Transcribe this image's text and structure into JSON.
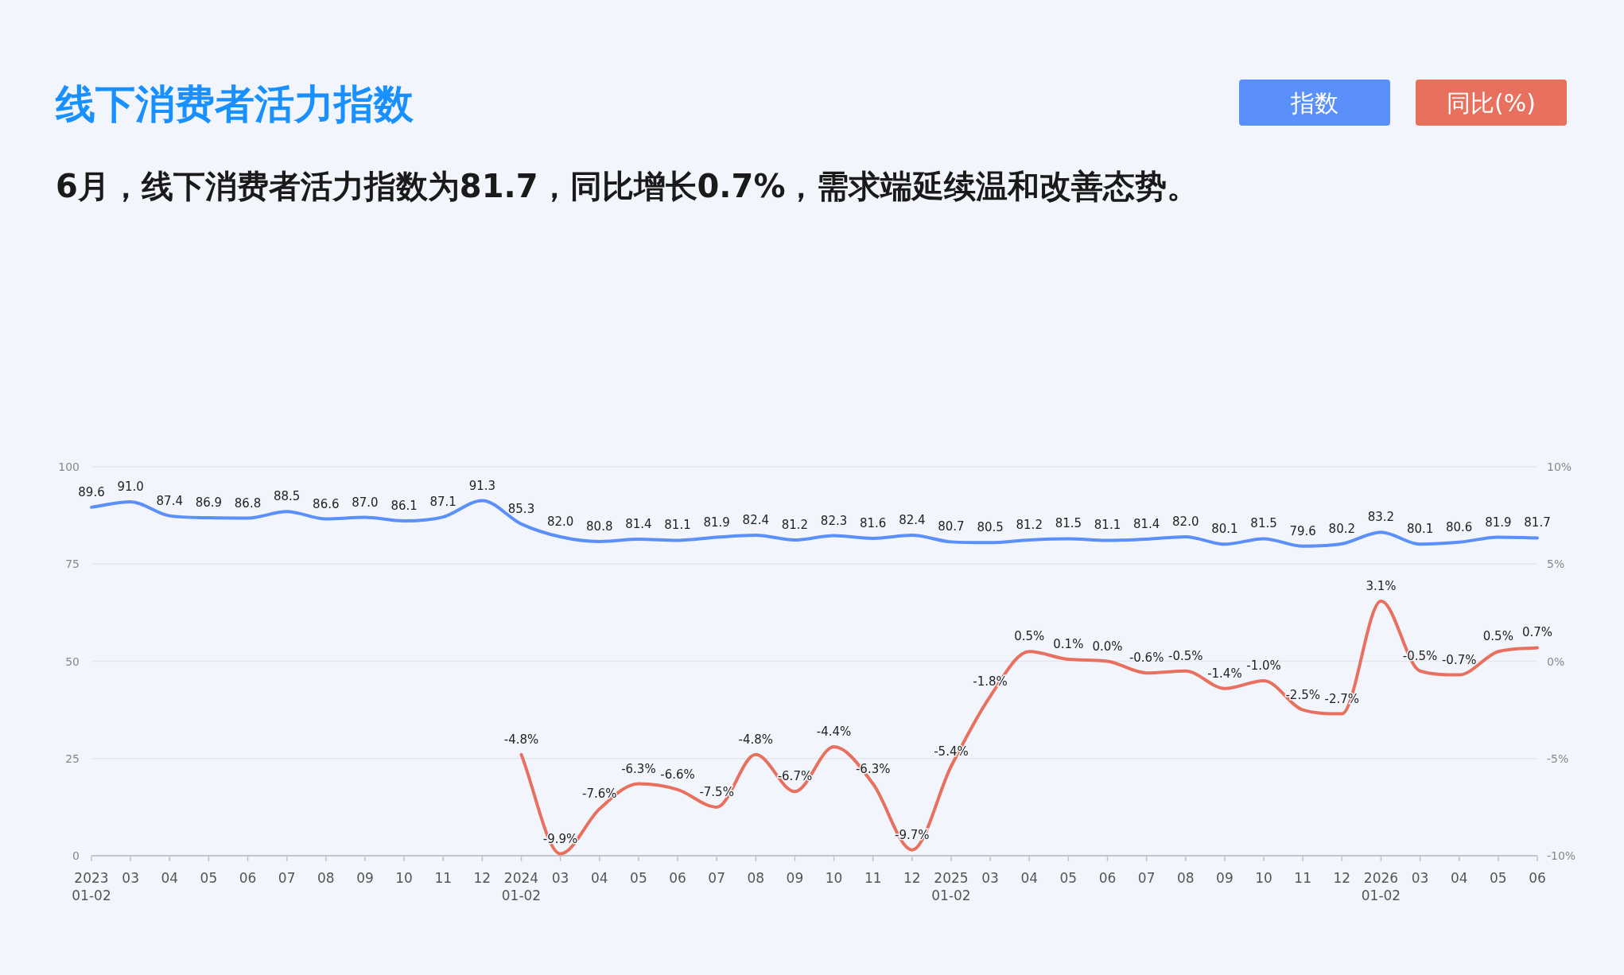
{
  "chart_data": {
    "type": "line",
    "title": "线下消费者活力指数",
    "subtitle": "6月，线下消费者活力指数为81.7，同比增长0.7%，需求端延续温和改善态势。",
    "categories": [
      "2023\n01-02",
      "03",
      "04",
      "05",
      "06",
      "07",
      "08",
      "09",
      "10",
      "11",
      "12",
      "2024\n01-02",
      "03",
      "04",
      "05",
      "06",
      "07",
      "08",
      "09",
      "10",
      "11",
      "12",
      "2025\n01-02",
      "03",
      "04",
      "05",
      "06",
      "07",
      "08",
      "09",
      "10",
      "11",
      "12",
      "2026\n01-02",
      "03",
      "04",
      "05",
      "06"
    ],
    "series": [
      {
        "name": "指数",
        "color": "#5b8ff9",
        "values": [
          89.6,
          91.0,
          87.4,
          86.9,
          86.8,
          88.5,
          86.6,
          87.0,
          86.1,
          87.1,
          91.3,
          85.3,
          82.0,
          80.8,
          81.4,
          81.1,
          81.9,
          82.4,
          81.2,
          82.3,
          81.6,
          82.4,
          80.7,
          80.5,
          81.2,
          81.5,
          81.1,
          81.4,
          82.0,
          80.1,
          81.5,
          79.6,
          80.2,
          83.2,
          80.1,
          80.6,
          81.9,
          81.7
        ],
        "value_labels": [
          "89.6",
          "91.0",
          "87.4",
          "86.9",
          "86.8",
          "88.5",
          "86.6",
          "87.0",
          "86.1",
          "87.1",
          "91.3",
          "85.3",
          "82.0",
          "80.8",
          "81.4",
          "81.1",
          "81.9",
          "82.4",
          "81.2",
          "82.3",
          "81.6",
          "82.4",
          "80.7",
          "80.5",
          "81.2",
          "81.5",
          "81.1",
          "81.4",
          "82.0",
          "80.1",
          "81.5",
          "79.6",
          "80.2",
          "83.2",
          "80.1",
          "80.6",
          "81.9",
          "81.7"
        ]
      },
      {
        "name": "同比(%)",
        "color": "#e8705e",
        "axis": "y2",
        "values": [
          null,
          null,
          null,
          null,
          null,
          null,
          null,
          null,
          null,
          null,
          null,
          -4.8,
          -9.9,
          -7.6,
          -6.3,
          -6.6,
          -7.5,
          -4.8,
          -6.7,
          -4.4,
          -6.3,
          -9.7,
          -5.4,
          -1.8,
          0.5,
          0.1,
          0.0,
          -0.6,
          -0.5,
          -1.4,
          -1.0,
          -2.5,
          -2.7,
          3.1,
          -0.5,
          -0.7,
          0.5,
          0.7
        ],
        "value_labels": [
          null,
          null,
          null,
          null,
          null,
          null,
          null,
          null,
          null,
          null,
          null,
          "-4.8%",
          "-9.9%",
          "-7.6%",
          "-6.3%",
          "-6.6%",
          "-7.5%",
          "-4.8%",
          "-6.7%",
          "-4.4%",
          "-6.3%",
          "-9.7%",
          "-5.4%",
          "-1.8%",
          "0.5%",
          "0.1%",
          "0.0%",
          "-0.6%",
          "-0.5%",
          "-1.4%",
          "-1.0%",
          "-2.5%",
          "-2.7%",
          "3.1%",
          "-0.5%",
          "-0.7%",
          "0.5%",
          "0.7%"
        ]
      }
    ],
    "ylim": [
      0,
      100
    ],
    "yticks": [
      0,
      25,
      50,
      75,
      100
    ],
    "y2lim": [
      -10,
      10
    ],
    "y2ticks": [
      {
        "value": -10,
        "label": "-10%"
      },
      {
        "value": -5,
        "label": "-5%"
      },
      {
        "value": 0,
        "label": "0%"
      },
      {
        "value": 5,
        "label": "5%"
      },
      {
        "value": 10,
        "label": "10%"
      }
    ],
    "grid": "y",
    "legend": "top right",
    "marker": "none",
    "line_style": "solid"
  }
}
